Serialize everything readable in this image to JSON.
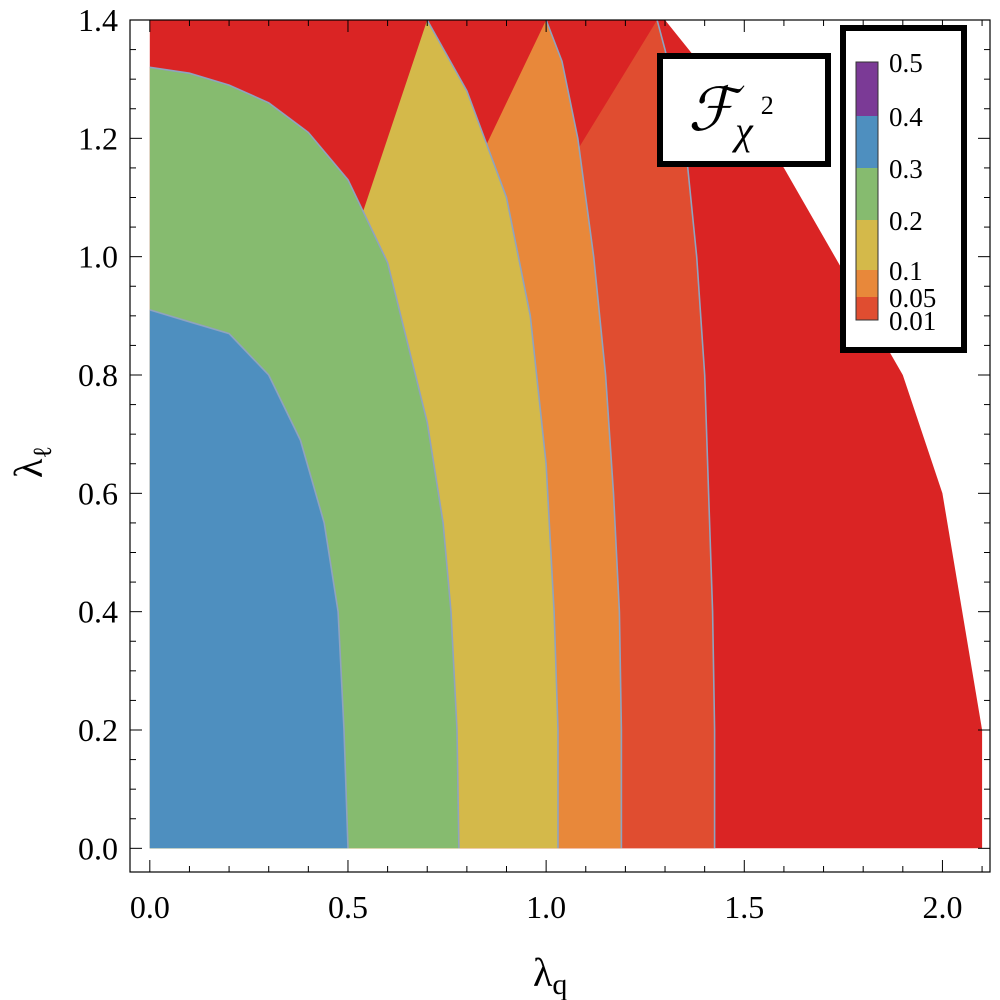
{
  "chart_data": {
    "type": "contour",
    "title": {
      "symbol": "ℱ",
      "subscript": "χ",
      "superscript": "2"
    },
    "xlabel": {
      "main": "λ",
      "sub": "q"
    },
    "ylabel": {
      "main": "λ",
      "sub": "ℓ"
    },
    "xlim": [
      -0.05,
      2.12
    ],
    "ylim": [
      -0.04,
      1.4
    ],
    "xticks": [
      "0.0",
      "0.5",
      "1.0",
      "1.5",
      "2.0"
    ],
    "xtick_values": [
      0,
      0.5,
      1.0,
      1.5,
      2.0
    ],
    "yticks": [
      "0.0",
      "0.2",
      "0.4",
      "0.6",
      "0.8",
      "1.0",
      "1.2",
      "1.4"
    ],
    "ytick_values": [
      0,
      0.2,
      0.4,
      0.6,
      0.8,
      1.0,
      1.2,
      1.4
    ],
    "domain_boundary": [
      [
        0,
        0
      ],
      [
        0,
        1.4
      ],
      [
        1.3,
        1.4
      ],
      [
        1.6,
        1.15
      ],
      [
        1.9,
        0.8
      ],
      [
        2.0,
        0.6
      ],
      [
        2.1,
        0.2
      ],
      [
        2.1,
        0
      ]
    ],
    "contour_levels": [
      {
        "level": "0.3",
        "color": "#4E8FBF",
        "line": [
          [
            0.5,
            0
          ],
          [
            0.49,
            0.2
          ],
          [
            0.475,
            0.4
          ],
          [
            0.44,
            0.55
          ],
          [
            0.38,
            0.69
          ],
          [
            0.3,
            0.8
          ],
          [
            0.2,
            0.87
          ],
          [
            0.1,
            0.89
          ],
          [
            0,
            0.91
          ]
        ]
      },
      {
        "level": "0.2",
        "color": "#86BB6F",
        "line": [
          [
            0.78,
            0
          ],
          [
            0.775,
            0.2
          ],
          [
            0.76,
            0.4
          ],
          [
            0.74,
            0.55
          ],
          [
            0.7,
            0.72
          ],
          [
            0.6,
            0.99
          ],
          [
            0.5,
            1.13
          ],
          [
            0.4,
            1.21
          ],
          [
            0.3,
            1.26
          ],
          [
            0.2,
            1.29
          ],
          [
            0.1,
            1.31
          ],
          [
            0,
            1.32
          ]
        ]
      },
      {
        "level": "0.1",
        "color": "#D4B94A",
        "line": [
          [
            1.03,
            0
          ],
          [
            1.03,
            0.2
          ],
          [
            1.02,
            0.4
          ],
          [
            1.0,
            0.65
          ],
          [
            0.96,
            0.9
          ],
          [
            0.9,
            1.1
          ],
          [
            0.8,
            1.28
          ],
          [
            0.7,
            1.4
          ]
        ]
      },
      {
        "level": "0.05",
        "color": "#E8883A",
        "line": [
          [
            1.19,
            0
          ],
          [
            1.19,
            0.2
          ],
          [
            1.185,
            0.4
          ],
          [
            1.17,
            0.6
          ],
          [
            1.15,
            0.8
          ],
          [
            1.12,
            1.0
          ],
          [
            1.08,
            1.2
          ],
          [
            1.04,
            1.33
          ],
          [
            1.0,
            1.4
          ]
        ]
      },
      {
        "level": "0.01",
        "color": "#E04D30",
        "line": [
          [
            1.425,
            0
          ],
          [
            1.425,
            0.2
          ],
          [
            1.42,
            0.4
          ],
          [
            1.41,
            0.6
          ],
          [
            1.4,
            0.8
          ],
          [
            1.38,
            1.0
          ],
          [
            1.35,
            1.2
          ],
          [
            1.3,
            1.35
          ],
          [
            1.28,
            1.4
          ]
        ]
      }
    ],
    "outer_fill": "#DA2424",
    "legend": {
      "placement": "top-right",
      "entries": [
        {
          "label": "0.5",
          "color": "#7B3A96",
          "value": 0.5
        },
        {
          "label": "0.4",
          "color": "#4E8FBF",
          "value": 0.4
        },
        {
          "label": "0.3",
          "color": "#86BB6F",
          "value": 0.3
        },
        {
          "label": "0.2",
          "color": "#D4B94A",
          "value": 0.2
        },
        {
          "label": "0.1",
          "color": "#E8883A",
          "value": 0.1
        },
        {
          "label": "0.05",
          "color": "#E04D30",
          "value": 0.05
        },
        {
          "label": "0.01",
          "color": "#DA2424",
          "value": 0.01
        }
      ]
    }
  }
}
